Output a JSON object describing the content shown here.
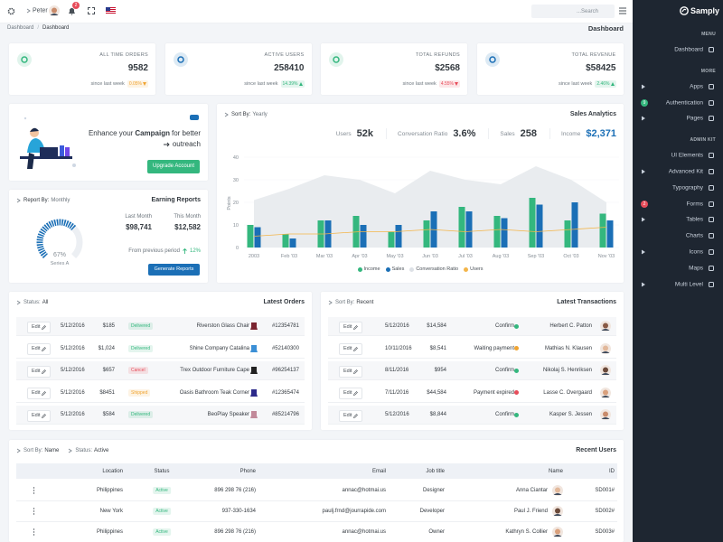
{
  "topbar": {
    "user": "Peter",
    "notifications": "2",
    "search_placeholder": "...Search"
  },
  "breadcrumb": [
    "Dashboard",
    "Dashboard"
  ],
  "breadcrumb_separator": "/",
  "page_title": "Dashboard",
  "stats": [
    {
      "label": "ALL TIME ORDERS",
      "value": "9582",
      "note": "since last week",
      "change": "0.05%",
      "trend": "down",
      "color": "#f0a431",
      "icon_color": "#34b77e"
    },
    {
      "label": "ACTIVE USERS",
      "value": "258410",
      "note": "since last week",
      "change": "14.39%",
      "trend": "up",
      "color": "#34b77e",
      "icon_color": "#1b6fb6"
    },
    {
      "label": "TOTAL REFUNDS",
      "value": "$2568",
      "note": "since last week",
      "change": "4.55%",
      "trend": "down",
      "color": "#e74c5a",
      "icon_color": "#34b77e"
    },
    {
      "label": "TOTAL REVENUE",
      "value": "$58425",
      "note": "since last week",
      "change": "2.46%",
      "trend": "up",
      "color": "#34b77e",
      "icon_color": "#1b6fb6"
    }
  ],
  "campaign": {
    "text_before": "Enhance your",
    "highlight": "Campaign",
    "text_after": "for better",
    "text_line2": "outreach",
    "button": "Upgrade Account"
  },
  "earning": {
    "sort_label": "Report By:",
    "sort_value": "Monthly",
    "title": "Earning Reports",
    "last_month_label": "Last Month",
    "last_month": "$98,741",
    "this_month_label": "This Month",
    "this_month": "$12,582",
    "period_label": "From previous period",
    "period_change": "12%",
    "button": "Generate Reports",
    "gauge_value": 67,
    "gauge_label": "67%",
    "gauge_series": "Series A"
  },
  "sales_analytics": {
    "sort_label": "Sort By:",
    "sort_value": "Yearly",
    "title": "Sales Analytics",
    "stats": [
      {
        "label": "Users",
        "value": "52k"
      },
      {
        "label": "Conversation Ratio",
        "value": "3.6%"
      },
      {
        "label": "Sales",
        "value": "258"
      },
      {
        "label": "Income",
        "value": "$2,371",
        "highlight": true
      }
    ]
  },
  "chart_data": {
    "type": "bar",
    "y_label": "Points",
    "categories": [
      "2003",
      "Feb '03",
      "Mar '03",
      "Apr '03",
      "May '03",
      "Jun '03",
      "Jul '03",
      "Aug '03",
      "Sep '03",
      "Oct '03",
      "Nov '03"
    ],
    "ylim": [
      0,
      40
    ],
    "yticks": [
      0,
      10,
      20,
      30,
      40
    ],
    "series": [
      {
        "name": "Income",
        "color": "#34b77e",
        "kind": "bar",
        "values": [
          10,
          6,
          12,
          14,
          7,
          12,
          18,
          14,
          22,
          12,
          15
        ]
      },
      {
        "name": "Sales",
        "color": "#1b6fb6",
        "kind": "bar",
        "values": [
          9,
          4,
          12,
          10,
          10,
          16,
          16,
          13,
          19,
          20,
          12
        ]
      },
      {
        "name": "Conversation Ratio",
        "color": "#e9ecef",
        "kind": "area",
        "values": [
          21,
          26,
          32,
          30,
          24,
          34,
          30,
          28,
          36,
          30,
          20
        ]
      },
      {
        "name": "Users",
        "color": "#f3b54a",
        "kind": "line",
        "values": [
          5,
          6,
          6,
          7,
          7,
          8,
          7,
          8,
          7,
          8,
          9
        ]
      }
    ]
  },
  "orders": {
    "filter_label": "Status:",
    "filter_value": "All",
    "title": "Latest Orders",
    "rows": [
      {
        "action": "Edit",
        "date": "5/12/2016",
        "price": "$185",
        "status": "Delivered",
        "status_color": "#34b77e",
        "product": "Riverston Glass Chair",
        "item_color": "#7a2430",
        "id": "#12354781"
      },
      {
        "action": "Edit",
        "date": "5/12/2016",
        "price": "$1,024",
        "status": "Delivered",
        "status_color": "#34b77e",
        "product": "Shine Company Catalina",
        "item_color": "#3b8fd6",
        "id": "#52140300"
      },
      {
        "action": "Edit",
        "date": "5/12/2016",
        "price": "$657",
        "status": "Cancel",
        "status_color": "#e74c5a",
        "product": "Trex Outdoor Furniture Cape",
        "item_color": "#222222",
        "id": "#96254137"
      },
      {
        "action": "Edit",
        "date": "5/12/2016",
        "price": "$8451",
        "status": "Shipped",
        "status_color": "#f0a431",
        "product": "Oasis Bathroom Teak Corner",
        "item_color": "#2c2a8a",
        "id": "#12365474"
      },
      {
        "action": "Edit",
        "date": "5/12/2016",
        "price": "$584",
        "status": "Delivered",
        "status_color": "#34b77e",
        "product": "BeoPlay Speaker",
        "item_color": "#c28a9a",
        "id": "#85214796"
      }
    ]
  },
  "transactions": {
    "sort_label": "Sort By:",
    "sort_value": "Recent",
    "title": "Latest Transactions",
    "rows": [
      {
        "action": "Edit",
        "date": "5/12/2016",
        "amount": "$14,584",
        "status": "Confirm",
        "status_color": "#34b77e",
        "name": "Herbert C. Patton"
      },
      {
        "action": "Edit",
        "date": "10/11/2016",
        "amount": "$8,541",
        "status": "Waiting payment",
        "status_color": "#f0a431",
        "name": "Mathias N. Klausen"
      },
      {
        "action": "Edit",
        "date": "8/11/2016",
        "amount": "$954",
        "status": "Confirm",
        "status_color": "#34b77e",
        "name": "Nikolaj S. Henriksen"
      },
      {
        "action": "Edit",
        "date": "7/11/2016",
        "amount": "$44,584",
        "status": "Payment expired",
        "status_color": "#e74c5a",
        "name": "Lasse C. Overgaard"
      },
      {
        "action": "Edit",
        "date": "5/12/2016",
        "amount": "$8,844",
        "status": "Confirm",
        "status_color": "#34b77e",
        "name": "Kasper S. Jessen"
      }
    ]
  },
  "users": {
    "sort_label": "Sort By:",
    "sort_value": "Name",
    "status_label": "Status:",
    "status_value": "Active",
    "title": "Recent Users",
    "columns": [
      "Location",
      "Status",
      "Phone",
      "Email",
      "Job title",
      "Name",
      "ID"
    ],
    "rows": [
      [
        "Philippines",
        "Active",
        "896 298 76 (216)",
        "annac@hotmai.us",
        "Designer",
        "Anna Ciantar",
        "SD001#"
      ],
      [
        "New York",
        "Active",
        "937-330-1634",
        "paulj.frnd@jourrapide.com",
        "Developer",
        "Paul J. Friend",
        "SD002#"
      ],
      [
        "Philippines",
        "Active",
        "896 298 76 (216)",
        "annac@hotmai.us",
        "Owner",
        "Kathryn S. Collier",
        "SD003#"
      ]
    ]
  },
  "sidebar": {
    "brand": "Samply",
    "sections": [
      {
        "title": "MENU",
        "items": [
          {
            "label": "Dashboard"
          }
        ]
      },
      {
        "title": "MORE",
        "items": [
          {
            "label": "Apps",
            "arrow": true
          },
          {
            "label": "Authentication",
            "badge": "9",
            "badge_color": "#34b77e"
          },
          {
            "label": "Pages",
            "arrow": true
          }
        ]
      },
      {
        "title": "ADMIN KIT",
        "items": [
          {
            "label": "UI Elements"
          },
          {
            "label": "Advanced Kit",
            "arrow": true
          },
          {
            "label": "Typography"
          },
          {
            "label": "Forms",
            "badge": "2",
            "badge_color": "#e74c5a"
          },
          {
            "label": "Tables",
            "arrow": true
          },
          {
            "label": "Charts"
          },
          {
            "label": "Icons",
            "arrow": true
          },
          {
            "label": "Maps"
          },
          {
            "label": "Multi Level",
            "arrow": true
          }
        ]
      }
    ]
  }
}
